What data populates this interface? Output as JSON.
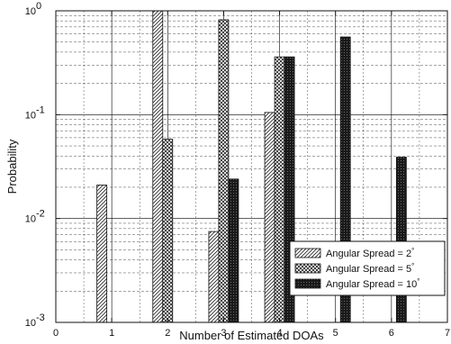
{
  "chart_data": {
    "type": "bar",
    "xlabel": "Number of Estimated DOAs",
    "ylabel": "Probability",
    "xlim": [
      0,
      7
    ],
    "ylim": [
      0.001,
      1
    ],
    "yscale": "log",
    "grid": true,
    "legend_position": "bottom-right",
    "x_ticks": [
      "0",
      "1",
      "2",
      "3",
      "4",
      "5",
      "6",
      "7"
    ],
    "y_ticks": [
      {
        "base": "10",
        "exp": "-3",
        "value": 0.001
      },
      {
        "base": "10",
        "exp": "-2",
        "value": 0.01
      },
      {
        "base": "10",
        "exp": "-1",
        "value": 0.1
      },
      {
        "base": "10",
        "exp": "0",
        "value": 1
      }
    ],
    "categories": [
      1,
      2,
      3,
      4,
      5,
      6
    ],
    "series": [
      {
        "name": "Angular Spread = 2°",
        "legend": {
          "prefix": "Angular Spread = ",
          "value": "2",
          "unit": "°"
        },
        "pattern": "diagonal-hatch",
        "values": [
          0.021,
          1.0,
          0.0075,
          0.105,
          null,
          null
        ]
      },
      {
        "name": "Angular Spread = 5°",
        "legend": {
          "prefix": "Angular Spread = ",
          "value": "5",
          "unit": "°"
        },
        "pattern": "cross-hatch",
        "values": [
          null,
          0.058,
          0.82,
          0.36,
          null,
          null
        ]
      },
      {
        "name": "Angular Spread = 10°",
        "legend": {
          "prefix": "Angular Spread = ",
          "value": "10",
          "unit": "°"
        },
        "pattern": "dark-speckle",
        "values": [
          null,
          null,
          0.024,
          0.36,
          0.56,
          0.039
        ]
      }
    ]
  }
}
